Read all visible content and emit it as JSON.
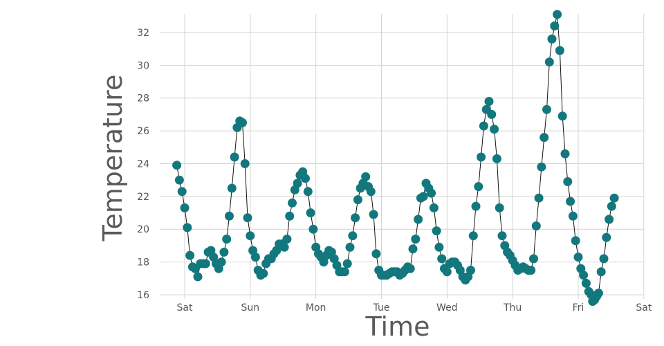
{
  "chart_data": {
    "type": "scatter",
    "xlabel": "Time",
    "ylabel": "Temperature",
    "x_ticks": [
      "Sat",
      "Sun",
      "Mon",
      "Tue",
      "Wed",
      "Thu",
      "Fri",
      "Sat"
    ],
    "x_range": [
      -0.1,
      7.0
    ],
    "ylim": [
      15.7,
      33.3
    ],
    "y_ticks": [
      16,
      18,
      20,
      22,
      24,
      26,
      28,
      30,
      32
    ],
    "grid": true,
    "line_connected": true,
    "colors": {
      "point": "#13787d",
      "line": "#111111",
      "grid": "#d4d4d4"
    },
    "points": [
      [
        -0.12,
        23.9
      ],
      [
        -0.08,
        23.0
      ],
      [
        -0.04,
        22.3
      ],
      [
        0.0,
        21.3
      ],
      [
        0.04,
        20.1
      ],
      [
        0.08,
        18.4
      ],
      [
        0.12,
        17.7
      ],
      [
        0.16,
        17.6
      ],
      [
        0.2,
        17.1
      ],
      [
        0.24,
        17.9
      ],
      [
        0.28,
        17.9
      ],
      [
        0.32,
        17.9
      ],
      [
        0.36,
        18.6
      ],
      [
        0.4,
        18.7
      ],
      [
        0.44,
        18.3
      ],
      [
        0.48,
        17.9
      ],
      [
        0.52,
        17.6
      ],
      [
        0.56,
        18.0
      ],
      [
        0.6,
        18.6
      ],
      [
        0.64,
        19.4
      ],
      [
        0.68,
        20.8
      ],
      [
        0.72,
        22.5
      ],
      [
        0.76,
        24.4
      ],
      [
        0.8,
        26.2
      ],
      [
        0.84,
        26.6
      ],
      [
        0.88,
        26.5
      ],
      [
        0.92,
        24.0
      ],
      [
        0.96,
        20.7
      ],
      [
        1.0,
        19.6
      ],
      [
        1.04,
        18.7
      ],
      [
        1.08,
        18.3
      ],
      [
        1.12,
        17.5
      ],
      [
        1.16,
        17.2
      ],
      [
        1.2,
        17.3
      ],
      [
        1.24,
        17.9
      ],
      [
        1.28,
        18.2
      ],
      [
        1.32,
        18.2
      ],
      [
        1.36,
        18.5
      ],
      [
        1.4,
        18.7
      ],
      [
        1.44,
        19.1
      ],
      [
        1.48,
        19.1
      ],
      [
        1.52,
        18.9
      ],
      [
        1.56,
        19.4
      ],
      [
        1.6,
        20.8
      ],
      [
        1.64,
        21.6
      ],
      [
        1.68,
        22.4
      ],
      [
        1.72,
        22.8
      ],
      [
        1.76,
        23.3
      ],
      [
        1.8,
        23.5
      ],
      [
        1.84,
        23.1
      ],
      [
        1.88,
        22.3
      ],
      [
        1.92,
        21.0
      ],
      [
        1.96,
        20.0
      ],
      [
        2.0,
        18.9
      ],
      [
        2.04,
        18.5
      ],
      [
        2.08,
        18.3
      ],
      [
        2.12,
        18.0
      ],
      [
        2.16,
        18.4
      ],
      [
        2.2,
        18.7
      ],
      [
        2.24,
        18.6
      ],
      [
        2.28,
        18.2
      ],
      [
        2.32,
        17.8
      ],
      [
        2.36,
        17.4
      ],
      [
        2.4,
        17.4
      ],
      [
        2.44,
        17.4
      ],
      [
        2.48,
        17.9
      ],
      [
        2.52,
        18.9
      ],
      [
        2.56,
        19.6
      ],
      [
        2.6,
        20.7
      ],
      [
        2.64,
        21.8
      ],
      [
        2.68,
        22.5
      ],
      [
        2.72,
        22.8
      ],
      [
        2.76,
        23.2
      ],
      [
        2.8,
        22.6
      ],
      [
        2.84,
        22.3
      ],
      [
        2.88,
        20.9
      ],
      [
        2.92,
        18.5
      ],
      [
        2.96,
        17.5
      ],
      [
        3.0,
        17.2
      ],
      [
        3.04,
        17.2
      ],
      [
        3.08,
        17.2
      ],
      [
        3.12,
        17.3
      ],
      [
        3.16,
        17.4
      ],
      [
        3.2,
        17.4
      ],
      [
        3.24,
        17.4
      ],
      [
        3.28,
        17.2
      ],
      [
        3.32,
        17.3
      ],
      [
        3.36,
        17.5
      ],
      [
        3.4,
        17.7
      ],
      [
        3.44,
        17.6
      ],
      [
        3.48,
        18.8
      ],
      [
        3.52,
        19.4
      ],
      [
        3.56,
        20.6
      ],
      [
        3.6,
        21.9
      ],
      [
        3.64,
        22.0
      ],
      [
        3.68,
        22.8
      ],
      [
        3.72,
        22.5
      ],
      [
        3.76,
        22.2
      ],
      [
        3.8,
        21.3
      ],
      [
        3.84,
        19.9
      ],
      [
        3.88,
        18.9
      ],
      [
        3.92,
        18.2
      ],
      [
        3.96,
        17.6
      ],
      [
        4.0,
        17.4
      ],
      [
        4.04,
        17.9
      ],
      [
        4.08,
        18.0
      ],
      [
        4.12,
        18.0
      ],
      [
        4.16,
        17.8
      ],
      [
        4.2,
        17.5
      ],
      [
        4.24,
        17.1
      ],
      [
        4.28,
        16.9
      ],
      [
        4.32,
        17.1
      ],
      [
        4.36,
        17.5
      ],
      [
        4.4,
        19.6
      ],
      [
        4.44,
        21.4
      ],
      [
        4.48,
        22.6
      ],
      [
        4.52,
        24.4
      ],
      [
        4.56,
        26.3
      ],
      [
        4.6,
        27.3
      ],
      [
        4.64,
        27.8
      ],
      [
        4.68,
        27.0
      ],
      [
        4.72,
        26.1
      ],
      [
        4.76,
        24.3
      ],
      [
        4.8,
        21.3
      ],
      [
        4.84,
        19.6
      ],
      [
        4.88,
        19.0
      ],
      [
        4.92,
        18.6
      ],
      [
        4.96,
        18.4
      ],
      [
        5.0,
        18.1
      ],
      [
        5.04,
        17.8
      ],
      [
        5.08,
        17.5
      ],
      [
        5.12,
        17.6
      ],
      [
        5.16,
        17.7
      ],
      [
        5.2,
        17.6
      ],
      [
        5.24,
        17.5
      ],
      [
        5.28,
        17.5
      ],
      [
        5.32,
        18.2
      ],
      [
        5.36,
        20.2
      ],
      [
        5.4,
        21.9
      ],
      [
        5.44,
        23.8
      ],
      [
        5.48,
        25.6
      ],
      [
        5.52,
        27.3
      ],
      [
        5.56,
        30.2
      ],
      [
        5.6,
        31.6
      ],
      [
        5.64,
        32.4
      ],
      [
        5.68,
        33.1
      ],
      [
        5.72,
        30.9
      ],
      [
        5.76,
        26.9
      ],
      [
        5.8,
        24.6
      ],
      [
        5.84,
        22.9
      ],
      [
        5.88,
        21.7
      ],
      [
        5.92,
        20.8
      ],
      [
        5.96,
        19.3
      ],
      [
        6.0,
        18.3
      ],
      [
        6.04,
        17.6
      ],
      [
        6.08,
        17.2
      ],
      [
        6.12,
        16.7
      ],
      [
        6.16,
        16.2
      ],
      [
        6.2,
        16.0
      ],
      [
        6.22,
        15.6
      ],
      [
        6.25,
        15.7
      ],
      [
        6.28,
        15.9
      ],
      [
        6.31,
        16.1
      ],
      [
        6.35,
        17.4
      ],
      [
        6.39,
        18.2
      ],
      [
        6.43,
        19.5
      ],
      [
        6.47,
        20.6
      ],
      [
        6.51,
        21.4
      ],
      [
        6.55,
        21.9
      ]
    ]
  }
}
